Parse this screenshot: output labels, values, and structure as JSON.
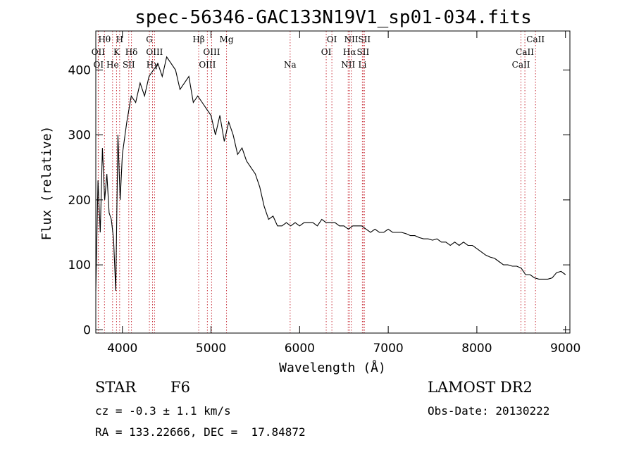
{
  "chart_data": {
    "type": "line",
    "title": "spec-56346-GAC133N19V1_sp01-034.fits",
    "xlabel": "Wavelength (Å)",
    "ylabel": "Flux (relative)",
    "xlim": [
      3700,
      9050
    ],
    "ylim": [
      -5,
      460
    ],
    "xticks": [
      4000,
      5000,
      6000,
      7000,
      8000,
      9000
    ],
    "yticks": [
      0,
      100,
      200,
      300,
      400
    ],
    "grid": false,
    "legend": "none",
    "line_color": "#000000",
    "marker_color": "#c8323c",
    "series": [
      {
        "x": [
          3700,
          3725,
          3750,
          3775,
          3800,
          3825,
          3850,
          3875,
          3900,
          3925,
          3950,
          3975,
          4000,
          4050,
          4100,
          4150,
          4200,
          4250,
          4300,
          4350,
          4400,
          4450,
          4500,
          4550,
          4600,
          4650,
          4700,
          4750,
          4800,
          4850,
          4900,
          4950,
          5000,
          5050,
          5100,
          5150,
          5200,
          5250,
          5300,
          5350,
          5400,
          5450,
          5500,
          5550,
          5600,
          5650,
          5700,
          5750,
          5800,
          5850,
          5900,
          5950,
          6000,
          6050,
          6100,
          6150,
          6200,
          6250,
          6300,
          6350,
          6400,
          6450,
          6500,
          6550,
          6600,
          6650,
          6700,
          6750,
          6800,
          6850,
          6900,
          6950,
          7000,
          7050,
          7100,
          7150,
          7200,
          7250,
          7300,
          7350,
          7400,
          7450,
          7500,
          7550,
          7600,
          7650,
          7700,
          7750,
          7800,
          7850,
          7900,
          7950,
          8000,
          8050,
          8100,
          8150,
          8200,
          8250,
          8300,
          8350,
          8400,
          8450,
          8500,
          8550,
          8600,
          8650,
          8700,
          8750,
          8800,
          8850,
          8900,
          8950,
          9000
        ],
        "y": [
          60,
          230,
          150,
          280,
          200,
          240,
          180,
          170,
          140,
          60,
          300,
          200,
          270,
          320,
          360,
          350,
          380,
          360,
          390,
          400,
          410,
          390,
          420,
          410,
          400,
          370,
          380,
          390,
          350,
          360,
          350,
          340,
          330,
          300,
          330,
          290,
          320,
          300,
          270,
          280,
          260,
          250,
          240,
          220,
          190,
          170,
          175,
          160,
          160,
          165,
          160,
          165,
          160,
          165,
          165,
          165,
          160,
          170,
          165,
          165,
          165,
          160,
          160,
          155,
          160,
          160,
          160,
          155,
          150,
          155,
          150,
          150,
          155,
          150,
          150,
          150,
          148,
          145,
          145,
          142,
          140,
          140,
          138,
          140,
          135,
          135,
          130,
          135,
          130,
          135,
          130,
          130,
          125,
          120,
          115,
          112,
          110,
          105,
          100,
          100,
          98,
          98,
          95,
          85,
          85,
          80,
          78,
          78,
          78,
          80,
          88,
          90,
          85
        ]
      }
    ],
    "lines_top": [
      {
        "x": 3798,
        "label": "Hθ",
        "row": 0
      },
      {
        "x": 3727,
        "label": "OII",
        "row": 1
      },
      {
        "x": 3730,
        "label": "OI",
        "row": 2
      },
      {
        "x": 3889,
        "label": "He",
        "row": 2
      },
      {
        "x": 3934,
        "label": "K",
        "row": 1
      },
      {
        "x": 3969,
        "label": "H",
        "row": 0
      },
      {
        "x": 4072,
        "label": "SII",
        "row": 2
      },
      {
        "x": 4102,
        "label": "Hδ",
        "row": 1
      },
      {
        "x": 4305,
        "label": "G",
        "row": 0
      },
      {
        "x": 4340,
        "label": "Hγ",
        "row": 2
      },
      {
        "x": 4363,
        "label": "OIII",
        "row": 1
      },
      {
        "x": 4861,
        "label": "Hβ",
        "row": 0
      },
      {
        "x": 4959,
        "label": "OIII",
        "row": 2
      },
      {
        "x": 5007,
        "label": "OIII",
        "row": 1
      },
      {
        "x": 5175,
        "label": "Mg",
        "row": 0
      },
      {
        "x": 5893,
        "label": "Na",
        "row": 2
      },
      {
        "x": 6300,
        "label": "OI",
        "row": 1
      },
      {
        "x": 6364,
        "label": "OI",
        "row": 0
      },
      {
        "x": 6548,
        "label": "NII",
        "row": 2
      },
      {
        "x": 6563,
        "label": "Hα",
        "row": 1
      },
      {
        "x": 6583,
        "label": "NII",
        "row": 0
      },
      {
        "x": 6708,
        "label": "Li",
        "row": 2
      },
      {
        "x": 6716,
        "label": "SII",
        "row": 1
      },
      {
        "x": 6731,
        "label": "SII",
        "row": 0
      },
      {
        "x": 8498,
        "label": "CaII",
        "row": 2
      },
      {
        "x": 8542,
        "label": "CaII",
        "row": 1
      },
      {
        "x": 8662,
        "label": "CaII",
        "row": 0
      }
    ]
  },
  "info": {
    "class_label": "STAR",
    "subclass": "F6",
    "survey": "LAMOST DR2",
    "redshift_text": "cz = -0.3 ± 1.1 km/s",
    "obs_date": "Obs-Date: 20130222",
    "coords": "RA = 133.22666, DEC =  17.84872"
  }
}
